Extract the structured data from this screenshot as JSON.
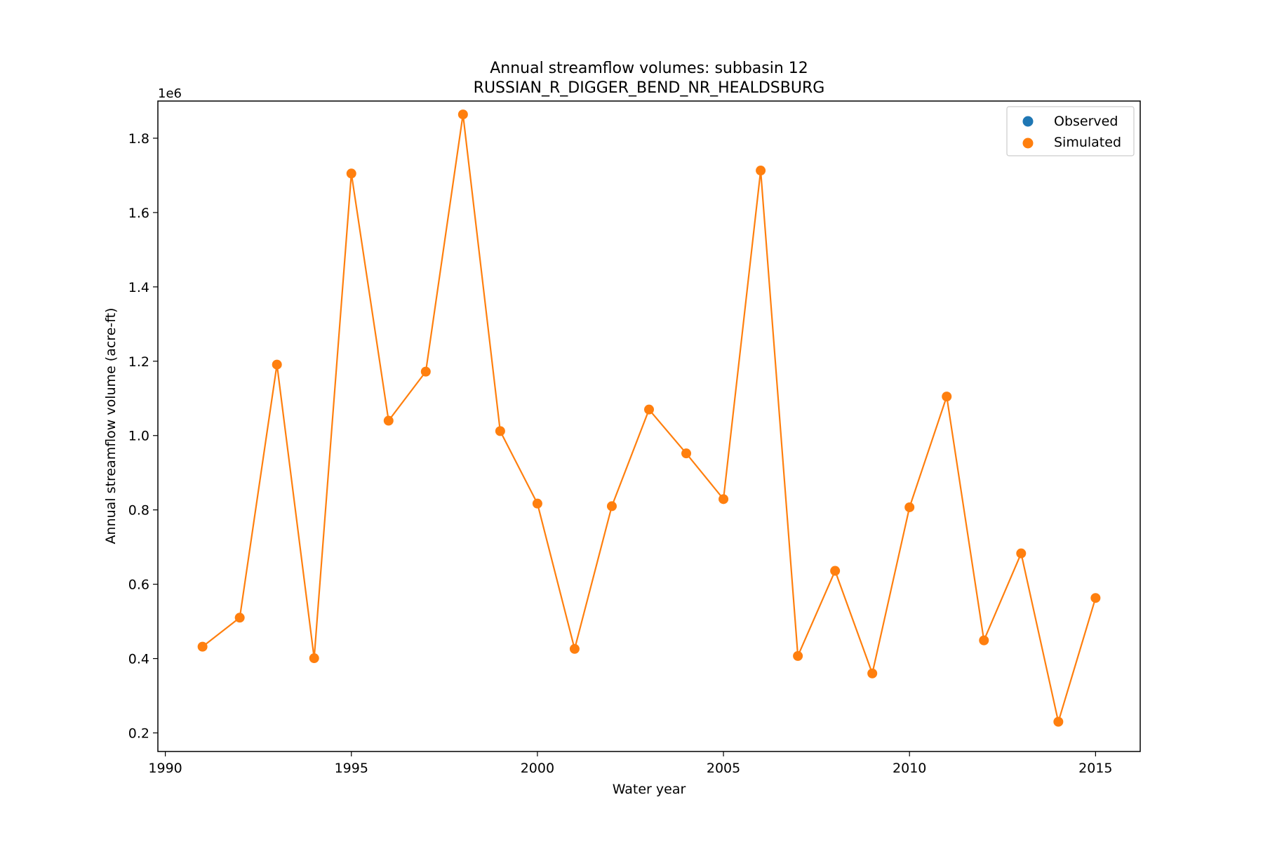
{
  "chart_data": {
    "type": "line",
    "title": "Annual streamflow volumes: subbasin 12",
    "subtitle": "RUSSIAN_R_DIGGER_BEND_NR_HEALDSBURG",
    "xlabel": "Water year",
    "ylabel": "Annual streamflow volume (acre-ft)",
    "y_offset_label": "1e6",
    "xlim": [
      1989.8,
      2016.2
    ],
    "ylim": [
      0.15,
      1.9
    ],
    "x_ticks": [
      1990,
      1995,
      2000,
      2005,
      2010,
      2015
    ],
    "x_tick_labels": [
      "1990",
      "1995",
      "2000",
      "2005",
      "2010",
      "2015"
    ],
    "y_ticks": [
      0.2,
      0.4,
      0.6,
      0.8,
      1.0,
      1.2,
      1.4,
      1.6,
      1.8
    ],
    "y_tick_labels": [
      "0.2",
      "0.4",
      "0.6",
      "0.8",
      "1.0",
      "1.2",
      "1.4",
      "1.6",
      "1.8"
    ],
    "grid": false,
    "legend_position": "top-right",
    "legend": [
      {
        "label": "Observed",
        "color": "#1f77b4"
      },
      {
        "label": "Simulated",
        "color": "#ff7f0e"
      }
    ],
    "series": [
      {
        "name": "Observed",
        "color": "#1f77b4",
        "x": [],
        "y": []
      },
      {
        "name": "Simulated",
        "color": "#ff7f0e",
        "x": [
          1991,
          1992,
          1993,
          1994,
          1995,
          1996,
          1997,
          1998,
          1999,
          2000,
          2001,
          2002,
          2003,
          2004,
          2005,
          2006,
          2007,
          2008,
          2009,
          2010,
          2011,
          2012,
          2013,
          2014,
          2015
        ],
        "y": [
          0.432,
          0.51,
          1.191,
          0.401,
          1.705,
          1.04,
          1.172,
          1.864,
          1.012,
          0.817,
          0.426,
          0.81,
          1.07,
          0.952,
          0.829,
          1.713,
          0.407,
          0.636,
          0.36,
          0.807,
          1.105,
          0.449,
          0.683,
          0.23,
          0.563
        ]
      }
    ]
  }
}
